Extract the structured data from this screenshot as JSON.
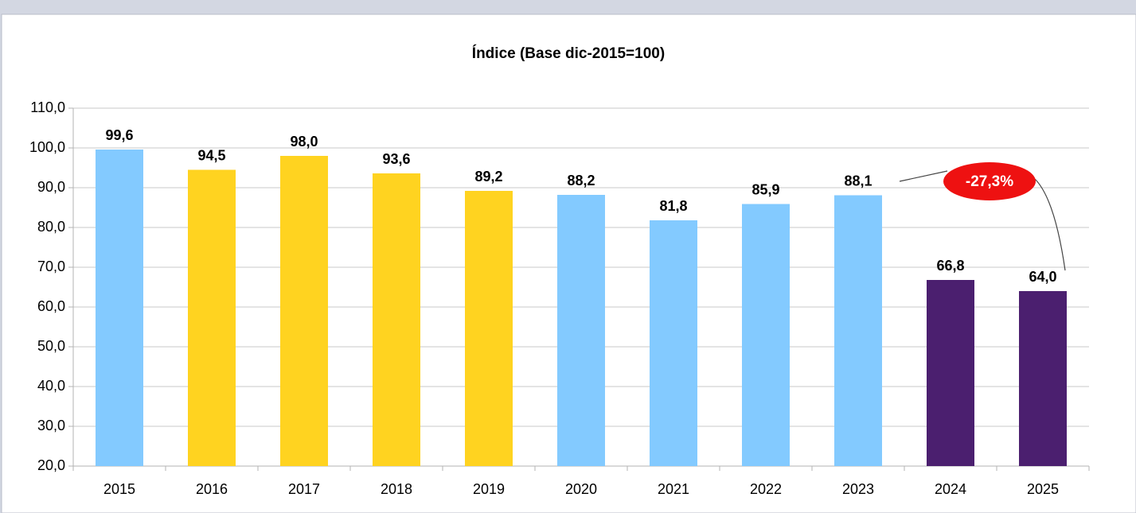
{
  "chart_data": {
    "type": "bar",
    "title": "Índice (Base dic-2015=100)",
    "categories": [
      "2015",
      "2016",
      "2017",
      "2018",
      "2019",
      "2020",
      "2021",
      "2022",
      "2023",
      "2024",
      "2025"
    ],
    "values": [
      99.6,
      94.5,
      98.0,
      93.6,
      89.2,
      88.2,
      81.8,
      85.9,
      88.1,
      66.8,
      64.0
    ],
    "value_labels": [
      "99,6",
      "94,5",
      "98,0",
      "93,6",
      "89,2",
      "88,2",
      "81,8",
      "85,9",
      "88,1",
      "66,8",
      "64,0"
    ],
    "colors": [
      "#83caff",
      "#ffd320",
      "#ffd320",
      "#ffd320",
      "#ffd320",
      "#83caff",
      "#83caff",
      "#83caff",
      "#83caff",
      "#4b1f6f",
      "#4b1f6f"
    ],
    "ylim": [
      20,
      110
    ],
    "yticks": [
      {
        "value": 20,
        "label": "20,0"
      },
      {
        "value": 30,
        "label": "30,0"
      },
      {
        "value": 40,
        "label": "40,0"
      },
      {
        "value": 50,
        "label": "50,0"
      },
      {
        "value": 60,
        "label": "60,0"
      },
      {
        "value": 70,
        "label": "70,0"
      },
      {
        "value": 80,
        "label": "80,0"
      },
      {
        "value": 90,
        "label": "90,0"
      },
      {
        "value": 100,
        "label": "100,0"
      },
      {
        "value": 110,
        "label": "110,0"
      }
    ],
    "grid": true,
    "annotation": "-27,3%"
  }
}
